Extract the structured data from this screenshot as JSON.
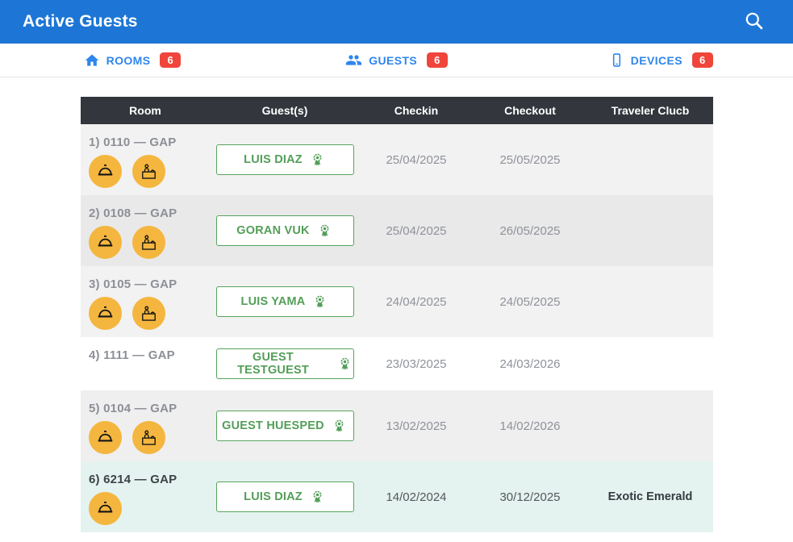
{
  "app": {
    "title": "Active Guests"
  },
  "header": {
    "search_icon": "magnifier"
  },
  "tabs": [
    {
      "label": "ROOMS",
      "count": "6",
      "icon": "home"
    },
    {
      "label": "GUESTS",
      "count": "6",
      "icon": "people"
    },
    {
      "label": "DEVICES",
      "count": "6",
      "icon": "smartphone"
    }
  ],
  "table": {
    "columns": [
      "Room",
      "Guest(s)",
      "Checkin",
      "Checkout",
      "Traveler Clucb"
    ],
    "rows": [
      {
        "room": "1) 0110 — GAP",
        "icons": [
          "room-service",
          "reception-desk"
        ],
        "guest": "LUIS DIAZ",
        "checkin": "25/04/2025",
        "checkout": "25/05/2025",
        "traveler_club": "",
        "tone": "light",
        "emphasized": false
      },
      {
        "room": "2) 0108 — GAP",
        "icons": [
          "room-service",
          "reception-desk"
        ],
        "guest": "GORAN VUK",
        "checkin": "25/04/2025",
        "checkout": "26/05/2025",
        "traveler_club": "",
        "tone": "dark",
        "emphasized": false
      },
      {
        "room": "3) 0105 — GAP",
        "icons": [
          "room-service",
          "reception-desk"
        ],
        "guest": "LUIS YAMA",
        "checkin": "24/04/2025",
        "checkout": "24/05/2025",
        "traveler_club": "",
        "tone": "light",
        "emphasized": false
      },
      {
        "room": "4) 1111 — GAP",
        "icons": [],
        "guest": "GUEST TESTGUEST",
        "checkin": "23/03/2025",
        "checkout": "24/03/2026",
        "traveler_club": "",
        "tone": "white",
        "emphasized": false
      },
      {
        "room": "5) 0104 — GAP",
        "icons": [
          "room-service",
          "reception-desk"
        ],
        "guest": "GUEST HUESPED",
        "checkin": "13/02/2025",
        "checkout": "14/02/2026",
        "traveler_club": "",
        "tone": "mid",
        "emphasized": false
      },
      {
        "room": "6) 6214 — GAP",
        "icons": [
          "room-service"
        ],
        "guest": "LUIS DIAZ",
        "checkin": "14/02/2024",
        "checkout": "30/12/2025",
        "traveler_club": "Exotic Emerald",
        "tone": "mint",
        "emphasized": true
      }
    ]
  },
  "colors": {
    "header_blue": "#1d76d5",
    "tab_blue": "#2e86ec",
    "badge_red": "#f0453b",
    "table_head_dark": "#33373d",
    "guest_green": "#539e58",
    "icon_amber": "#f4b63f",
    "highlight_mint": "#e4f3ef"
  }
}
